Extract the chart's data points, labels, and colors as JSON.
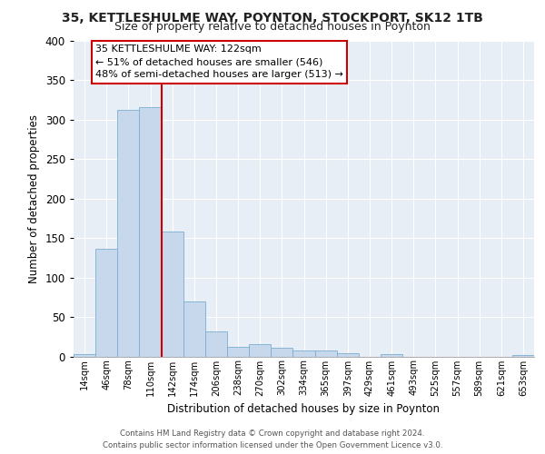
{
  "title1": "35, KETTLESHULME WAY, POYNTON, STOCKPORT, SK12 1TB",
  "title2": "Size of property relative to detached houses in Poynton",
  "xlabel": "Distribution of detached houses by size in Poynton",
  "ylabel": "Number of detached properties",
  "bar_values": [
    3,
    136,
    312,
    316,
    158,
    70,
    32,
    12,
    15,
    11,
    8,
    7,
    4,
    0,
    3,
    0,
    0,
    0,
    0,
    0,
    2
  ],
  "bin_labels": [
    "14sqm",
    "46sqm",
    "78sqm",
    "110sqm",
    "142sqm",
    "174sqm",
    "206sqm",
    "238sqm",
    "270sqm",
    "302sqm",
    "334sqm",
    "365sqm",
    "397sqm",
    "429sqm",
    "461sqm",
    "493sqm",
    "525sqm",
    "557sqm",
    "589sqm",
    "621sqm",
    "653sqm"
  ],
  "bar_color": "#c8d8ec",
  "bar_edge_color": "#7aaed0",
  "vline_color": "#cc0000",
  "annotation_text": "35 KETTLESHULME WAY: 122sqm\n← 51% of detached houses are smaller (546)\n48% of semi-detached houses are larger (513) →",
  "annotation_box_color": "#ffffff",
  "annotation_box_edge": "#cc0000",
  "ylim": [
    0,
    400
  ],
  "yticks": [
    0,
    50,
    100,
    150,
    200,
    250,
    300,
    350,
    400
  ],
  "footer_text": "Contains HM Land Registry data © Crown copyright and database right 2024.\nContains public sector information licensed under the Open Government Licence v3.0.",
  "bg_color": "#ffffff",
  "plot_bg_color": "#e8eef5",
  "grid_color": "#ffffff",
  "title1_fontsize": 10,
  "title2_fontsize": 9
}
